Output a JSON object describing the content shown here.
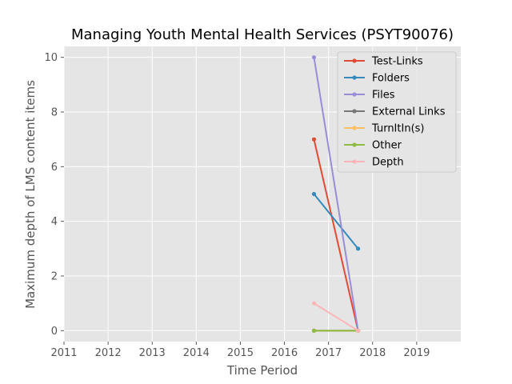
{
  "chart_data": {
    "type": "line",
    "title": "Managing Youth Mental Health Services (PSYT90076)",
    "xlabel": "Time Period",
    "ylabel": "Maximum depth of LMS content items",
    "xlim": [
      2011,
      2020
    ],
    "ylim": [
      -0.4,
      10.4
    ],
    "xticks": [
      2011,
      2012,
      2013,
      2014,
      2015,
      2016,
      2017,
      2018,
      2019
    ],
    "yticks": [
      0,
      2,
      4,
      6,
      8,
      10
    ],
    "grid": true,
    "legend_position": "top-right",
    "series": [
      {
        "name": "Test-Links",
        "color": "#E24A33",
        "x": [
          2016.67,
          2017.67
        ],
        "y": [
          7,
          0
        ]
      },
      {
        "name": "Folders",
        "color": "#348ABD",
        "x": [
          2016.67,
          2017.67
        ],
        "y": [
          5,
          3
        ]
      },
      {
        "name": "Files",
        "color": "#988ED5",
        "x": [
          2016.67,
          2017.67
        ],
        "y": [
          10,
          0
        ]
      },
      {
        "name": "External Links",
        "color": "#777777",
        "x": [
          2016.67,
          2017.67
        ],
        "y": [
          0,
          0
        ]
      },
      {
        "name": "TurnItIn(s)",
        "color": "#FBC15E",
        "x": [
          2016.67,
          2017.67
        ],
        "y": [
          0,
          0
        ]
      },
      {
        "name": "Other",
        "color": "#8EBA42",
        "x": [
          2016.67,
          2017.67
        ],
        "y": [
          0,
          0
        ]
      },
      {
        "name": "Depth",
        "color": "#FFB5B8",
        "x": [
          2016.67,
          2017.67
        ],
        "y": [
          1,
          0
        ]
      }
    ]
  }
}
